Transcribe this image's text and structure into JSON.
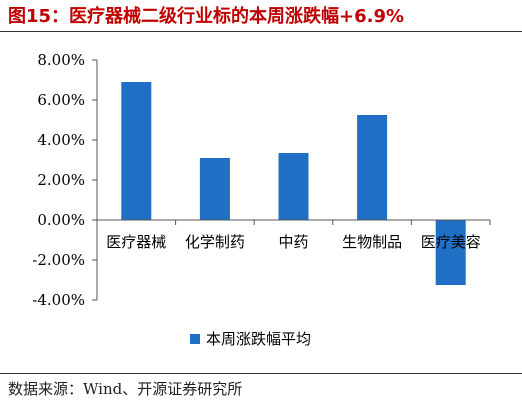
{
  "header": {
    "title": "图15：医疗器械二级行业标的本周涨跌幅+6.9%"
  },
  "footer": {
    "source": "数据来源：Wind、开源证券研究所"
  },
  "colors": {
    "bar": "#1f6fc5",
    "title": "#c00000"
  },
  "chart_data": {
    "type": "bar",
    "categories": [
      "医疗器械",
      "化学制药",
      "中药",
      "生物制品",
      "医疗美容"
    ],
    "series": [
      {
        "name": "本周涨跌幅平均",
        "values": [
          6.9,
          3.1,
          3.35,
          5.25,
          -3.25
        ]
      }
    ],
    "y_tick_labels": [
      "8.00%",
      "6.00%",
      "4.00%",
      "2.00%",
      "0.00%",
      "-2.00%",
      "-4.00%"
    ],
    "ylim": [
      -4,
      8
    ],
    "unit": "%",
    "grid": false,
    "legend_position": "bottom",
    "title": "",
    "xlabel": "",
    "ylabel": ""
  }
}
